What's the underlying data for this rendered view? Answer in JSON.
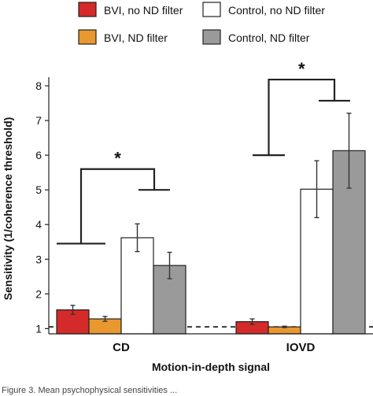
{
  "chart_data": {
    "type": "bar",
    "categories": [
      "CD",
      "IOVD"
    ],
    "series": [
      {
        "name": "BVI, no ND filter",
        "color": "#d42a2a",
        "values": [
          1.54,
          1.2
        ],
        "err": [
          0.13,
          0.08
        ]
      },
      {
        "name": "BVI, ND filter",
        "color": "#e8982e",
        "values": [
          1.28,
          1.05
        ],
        "err": [
          0.07,
          0.02
        ]
      },
      {
        "name": "Control, no ND filter",
        "color": "#ffffff",
        "values": [
          3.62,
          5.02
        ],
        "err": [
          0.4,
          0.82
        ]
      },
      {
        "name": "Control, ND filter",
        "color": "#9a9a9a",
        "values": [
          2.82,
          6.13
        ],
        "err": [
          0.38,
          1.08
        ]
      }
    ],
    "xlabel": "Motion-in-depth signal",
    "ylabel": "Sensitivity (1/coherence threshold)",
    "ylim": [
      0.85,
      8.25
    ],
    "yticks": [
      1,
      2,
      3,
      4,
      5,
      6,
      7,
      8
    ],
    "reference_line": 1.05,
    "significance": [
      {
        "group": "CD",
        "label": "*"
      },
      {
        "group": "IOVD",
        "label": "*"
      }
    ],
    "legend_position": "top",
    "grid": false
  },
  "caption": "Figure 3. Mean psychophysical sensitivities ..."
}
